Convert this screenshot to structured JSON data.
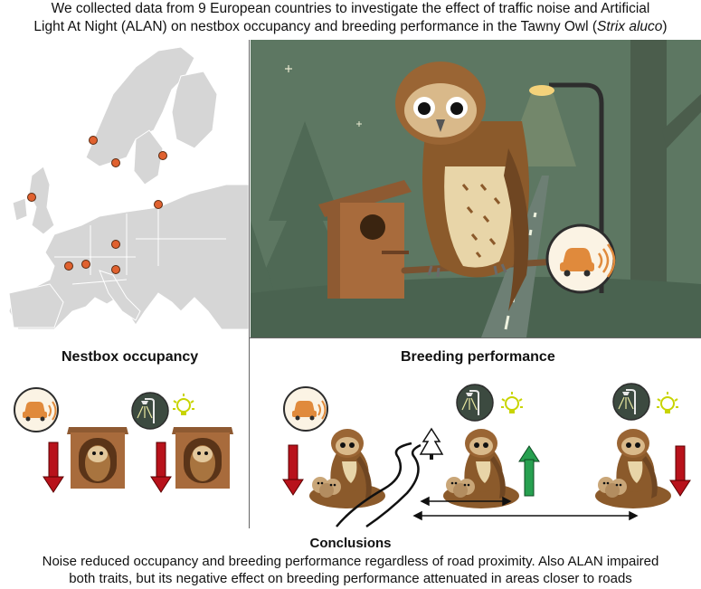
{
  "header": {
    "line1": "We collected data from 9 European countries to investigate the effect of traffic noise and Artificial",
    "line2_prefix": "Light At Night (ALAN) on nestbox occupancy and breeding performance in the Tawny Owl (",
    "species": "Strix aluco",
    "line2_suffix": ")"
  },
  "sections": {
    "nestbox_title": "Nestbox occupancy",
    "breeding_title": "Breeding performance"
  },
  "conclusions": {
    "title": "Conclusions",
    "line1": "Noise reduced occupancy and breeding performance regardless of road proximity. Also ALAN impaired",
    "line2": "both traits, but its negative effect on breeding performance attenuated in areas closer to roads"
  },
  "colors": {
    "map_land": "#d9d9d9",
    "site_dot": "#e0612f",
    "scene_bg": "#5f7a63",
    "arrow_down": "#c1121f",
    "arrow_up": "#27a050",
    "owl_brown": "#8b5a2b"
  },
  "icons": [
    "car-noise-icon",
    "street-lamp-icon",
    "light-bulb-icon",
    "tree-icon",
    "nestbox-icon",
    "owl-icon"
  ]
}
